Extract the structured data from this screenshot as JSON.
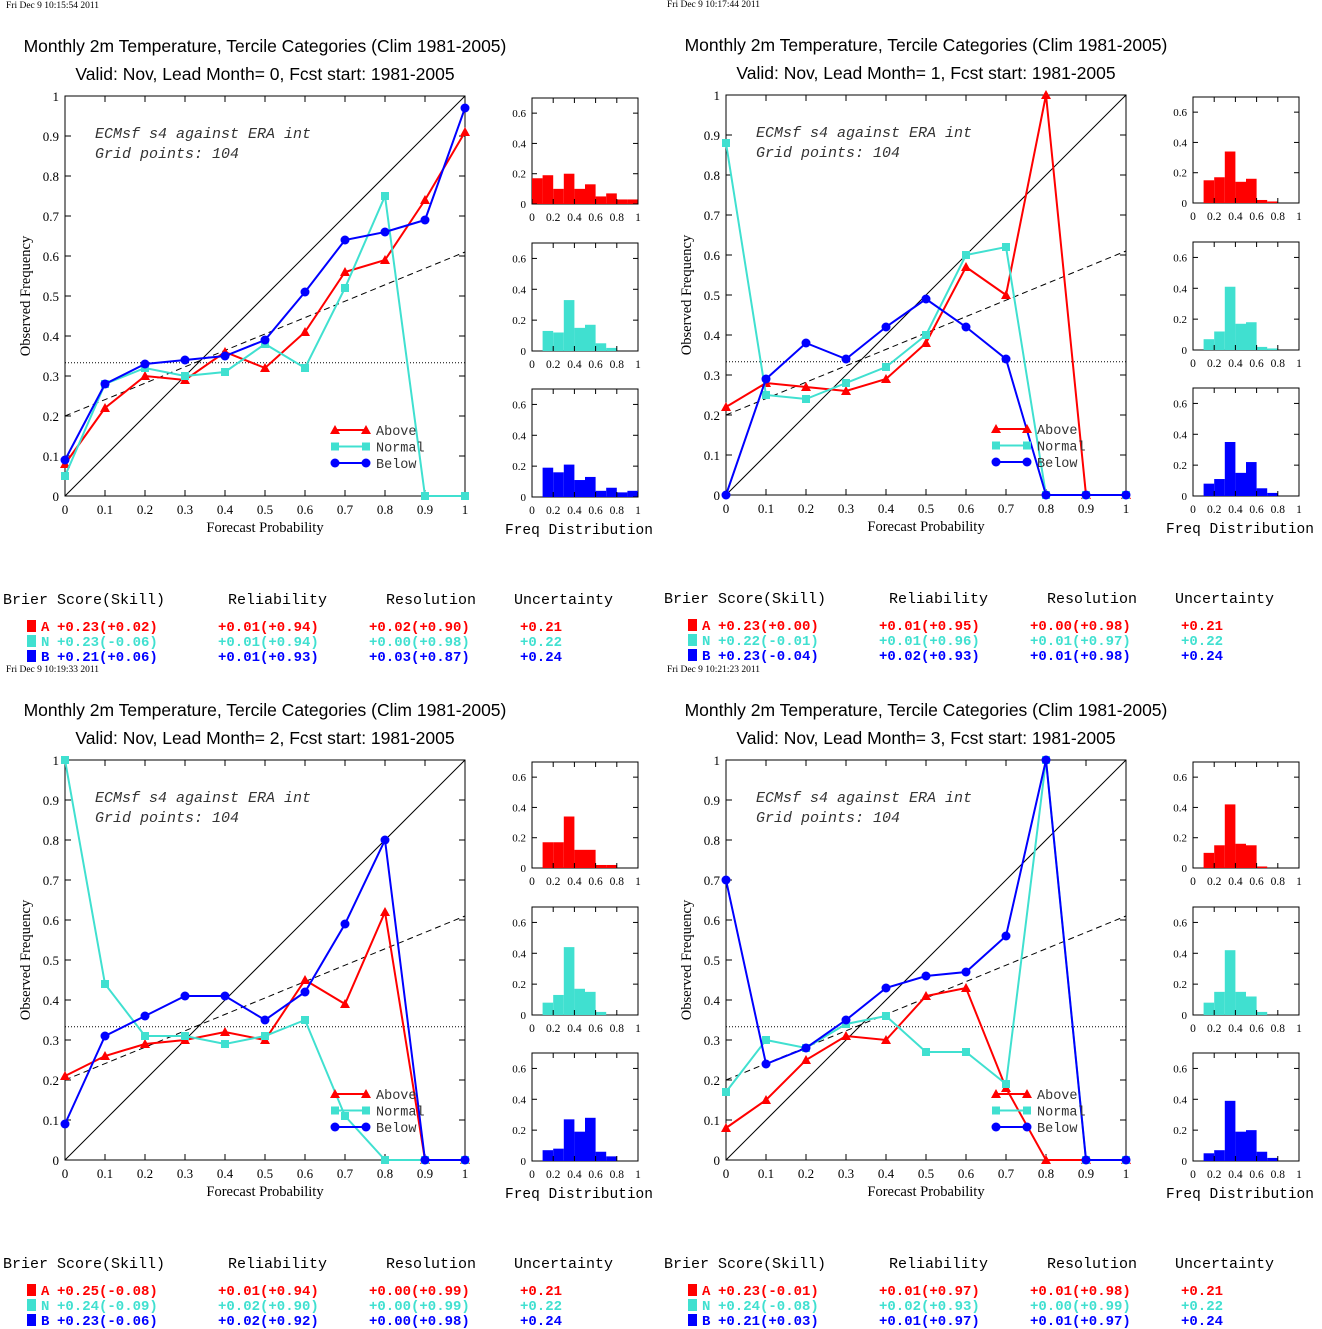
{
  "colors": {
    "above": "#ff0000",
    "normal": "#40e0d0",
    "below": "#0000ff",
    "axis": "#000000"
  },
  "common": {
    "title": "Monthly 2m Temperature, Tercile Categories (Clim 1981-2005)",
    "xlabel": "Forecast Probability",
    "ylabel": "Observed Frequency",
    "annotation_line1": "ECMsf s4 against ERA int",
    "annotation_line2": "Grid points:  104",
    "freq_label": "Freq Distribution",
    "legend": [
      "Above",
      "Normal",
      "Below"
    ],
    "score_headers": [
      "Brier Score(Skill)",
      "Reliability",
      "Resolution",
      "Uncertainty"
    ],
    "x_ticks": [
      "0",
      "0.1",
      "0.2",
      "0.3",
      "0.4",
      "0.5",
      "0.6",
      "0.7",
      "0.8",
      "0.9",
      "1"
    ],
    "y_ticks": [
      "0",
      "0.1",
      "0.2",
      "0.3",
      "0.4",
      "0.5",
      "0.6",
      "0.7",
      "0.8",
      "0.9",
      "1"
    ],
    "hist_x_ticks": [
      "0",
      "0.2",
      "0.4",
      "0.6",
      "0.8",
      "1"
    ],
    "hist_y_ticks": [
      "0",
      "0.2",
      "0.4",
      "0.6"
    ]
  },
  "chart_data": [
    {
      "type": "line",
      "timestamp": "Fri Dec  9 10:15:54 2011",
      "subtitle": "Valid: Nov, Lead Month= 0, Fcst start: 1981-2005",
      "xlim": [
        0,
        1
      ],
      "ylim": [
        0,
        1
      ],
      "x": [
        0,
        0.1,
        0.2,
        0.3,
        0.4,
        0.5,
        0.6,
        0.7,
        0.8,
        0.9,
        1
      ],
      "series": [
        {
          "name": "Above",
          "values": [
            0.08,
            0.22,
            0.3,
            0.29,
            0.36,
            0.32,
            0.41,
            0.56,
            0.59,
            0.74,
            0.91
          ]
        },
        {
          "name": "Normal",
          "values": [
            0.05,
            0.28,
            0.32,
            0.3,
            0.31,
            0.38,
            0.32,
            0.52,
            0.75,
            0.0,
            0.0
          ]
        },
        {
          "name": "Below",
          "values": [
            0.09,
            0.28,
            0.33,
            0.34,
            0.35,
            0.39,
            0.51,
            0.64,
            0.66,
            0.69,
            0.97
          ]
        }
      ],
      "climatology": 0.333,
      "fit_line": [
        0.2,
        0.61
      ],
      "histograms": {
        "bins": [
          0.05,
          0.15,
          0.25,
          0.35,
          0.45,
          0.55,
          0.65,
          0.75,
          0.85,
          0.95
        ],
        "above": [
          0.17,
          0.19,
          0.1,
          0.2,
          0.1,
          0.13,
          0.05,
          0.07,
          0.03,
          0.03
        ],
        "normal": [
          0.0,
          0.13,
          0.12,
          0.33,
          0.15,
          0.17,
          0.05,
          0.02,
          0.0,
          0.0
        ],
        "below": [
          0.0,
          0.19,
          0.16,
          0.21,
          0.11,
          0.13,
          0.04,
          0.06,
          0.03,
          0.04
        ]
      },
      "scores": {
        "A": {
          "label": "A",
          "brier": "+0.23(+0.02)",
          "reliability": "+0.01(+0.94)",
          "resolution": "+0.02(+0.90)",
          "uncertainty": "+0.21"
        },
        "N": {
          "label": "N",
          "brier": "+0.23(-0.06)",
          "reliability": "+0.01(+0.94)",
          "resolution": "+0.00(+0.98)",
          "uncertainty": "+0.22"
        },
        "B": {
          "label": "B",
          "brier": "+0.21(+0.06)",
          "reliability": "+0.01(+0.93)",
          "resolution": "+0.03(+0.87)",
          "uncertainty": "+0.24"
        }
      }
    },
    {
      "type": "line",
      "timestamp": "Fri Dec  9 10:17:44 2011",
      "subtitle": "Valid: Nov, Lead Month= 1, Fcst start: 1981-2005",
      "xlim": [
        0,
        1
      ],
      "ylim": [
        0,
        1
      ],
      "x": [
        0,
        0.1,
        0.2,
        0.3,
        0.4,
        0.5,
        0.6,
        0.7,
        0.8,
        0.9,
        1
      ],
      "series": [
        {
          "name": "Above",
          "values": [
            0.22,
            0.28,
            0.27,
            0.26,
            0.29,
            0.38,
            0.57,
            0.5,
            1.0,
            0.0,
            0.0
          ]
        },
        {
          "name": "Normal",
          "values": [
            0.88,
            0.25,
            0.24,
            0.28,
            0.32,
            0.4,
            0.6,
            0.62,
            0.0,
            0.0,
            0.0
          ]
        },
        {
          "name": "Below",
          "values": [
            0.0,
            0.29,
            0.38,
            0.34,
            0.42,
            0.49,
            0.42,
            0.34,
            0.0,
            0.0,
            0.0
          ]
        }
      ],
      "climatology": 0.333,
      "fit_line": [
        0.2,
        0.61
      ],
      "histograms": {
        "bins": [
          0.05,
          0.15,
          0.25,
          0.35,
          0.45,
          0.55,
          0.65,
          0.75,
          0.85,
          0.95
        ],
        "above": [
          0.0,
          0.15,
          0.17,
          0.34,
          0.14,
          0.16,
          0.02,
          0.01,
          0.0,
          0.0
        ],
        "normal": [
          0.0,
          0.07,
          0.12,
          0.41,
          0.17,
          0.18,
          0.02,
          0.01,
          0.0,
          0.0
        ],
        "below": [
          0.0,
          0.08,
          0.11,
          0.35,
          0.15,
          0.22,
          0.05,
          0.02,
          0.0,
          0.0
        ]
      },
      "scores": {
        "A": {
          "label": "A",
          "brier": "+0.23(+0.00)",
          "reliability": "+0.01(+0.95)",
          "resolution": "+0.00(+0.98)",
          "uncertainty": "+0.21"
        },
        "N": {
          "label": "N",
          "brier": "+0.22(-0.01)",
          "reliability": "+0.01(+0.96)",
          "resolution": "+0.01(+0.97)",
          "uncertainty": "+0.22"
        },
        "B": {
          "label": "B",
          "brier": "+0.23(-0.04)",
          "reliability": "+0.02(+0.93)",
          "resolution": "+0.01(+0.98)",
          "uncertainty": "+0.24"
        }
      }
    },
    {
      "type": "line",
      "timestamp": "Fri Dec  9 10:19:33 2011",
      "subtitle": "Valid: Nov, Lead Month= 2, Fcst start: 1981-2005",
      "xlim": [
        0,
        1
      ],
      "ylim": [
        0,
        1
      ],
      "x": [
        0,
        0.1,
        0.2,
        0.3,
        0.4,
        0.5,
        0.6,
        0.7,
        0.8,
        0.9,
        1
      ],
      "series": [
        {
          "name": "Above",
          "values": [
            0.21,
            0.26,
            0.29,
            0.3,
            0.32,
            0.3,
            0.45,
            0.39,
            0.62,
            0.0,
            0.0
          ]
        },
        {
          "name": "Normal",
          "values": [
            1.0,
            0.44,
            0.31,
            0.31,
            0.29,
            0.31,
            0.35,
            0.11,
            0.0,
            0.0,
            0.0
          ]
        },
        {
          "name": "Below",
          "values": [
            0.09,
            0.31,
            0.36,
            0.41,
            0.41,
            0.35,
            0.42,
            0.59,
            0.8,
            0.0,
            0.0
          ]
        }
      ],
      "climatology": 0.333,
      "fit_line": [
        0.2,
        0.61
      ],
      "histograms": {
        "bins": [
          0.05,
          0.15,
          0.25,
          0.35,
          0.45,
          0.55,
          0.65,
          0.75,
          0.85,
          0.95
        ],
        "above": [
          0.0,
          0.17,
          0.17,
          0.34,
          0.12,
          0.12,
          0.02,
          0.02,
          0.0,
          0.0
        ],
        "normal": [
          0.0,
          0.08,
          0.13,
          0.44,
          0.17,
          0.15,
          0.02,
          0.0,
          0.0,
          0.0
        ],
        "below": [
          0.0,
          0.07,
          0.08,
          0.27,
          0.19,
          0.28,
          0.06,
          0.03,
          0.0,
          0.0
        ]
      },
      "scores": {
        "A": {
          "label": "A",
          "brier": "+0.25(-0.08)",
          "reliability": "+0.01(+0.94)",
          "resolution": "+0.00(+0.99)",
          "uncertainty": "+0.21"
        },
        "N": {
          "label": "N",
          "brier": "+0.24(-0.09)",
          "reliability": "+0.02(+0.90)",
          "resolution": "+0.00(+0.99)",
          "uncertainty": "+0.22"
        },
        "B": {
          "label": "B",
          "brier": "+0.23(-0.06)",
          "reliability": "+0.02(+0.92)",
          "resolution": "+0.00(+0.98)",
          "uncertainty": "+0.24"
        }
      }
    },
    {
      "type": "line",
      "timestamp": "Fri Dec  9 10:21:23 2011",
      "subtitle": "Valid: Nov, Lead Month= 3, Fcst start: 1981-2005",
      "xlim": [
        0,
        1
      ],
      "ylim": [
        0,
        1
      ],
      "x": [
        0,
        0.1,
        0.2,
        0.3,
        0.4,
        0.5,
        0.6,
        0.7,
        0.8,
        0.9,
        1
      ],
      "series": [
        {
          "name": "Above",
          "values": [
            0.08,
            0.15,
            0.25,
            0.31,
            0.3,
            0.41,
            0.43,
            0.18,
            0.0,
            0.0,
            0.0
          ]
        },
        {
          "name": "Normal",
          "values": [
            0.17,
            0.3,
            0.28,
            0.34,
            0.36,
            0.27,
            0.27,
            0.19,
            1.0,
            0.0,
            0.0
          ]
        },
        {
          "name": "Below",
          "values": [
            0.7,
            0.24,
            0.28,
            0.35,
            0.43,
            0.46,
            0.47,
            0.56,
            1.0,
            0.0,
            0.0
          ]
        }
      ],
      "climatology": 0.333,
      "fit_line": [
        0.2,
        0.61
      ],
      "histograms": {
        "bins": [
          0.05,
          0.15,
          0.25,
          0.35,
          0.45,
          0.55,
          0.65,
          0.75,
          0.85,
          0.95
        ],
        "above": [
          0.0,
          0.1,
          0.15,
          0.42,
          0.16,
          0.15,
          0.01,
          0.0,
          0.0,
          0.0
        ],
        "normal": [
          0.0,
          0.08,
          0.15,
          0.42,
          0.15,
          0.12,
          0.02,
          0.0,
          0.0,
          0.0
        ],
        "below": [
          0.0,
          0.05,
          0.07,
          0.39,
          0.19,
          0.2,
          0.06,
          0.02,
          0.0,
          0.0
        ]
      },
      "scores": {
        "A": {
          "label": "A",
          "brier": "+0.23(-0.01)",
          "reliability": "+0.01(+0.97)",
          "resolution": "+0.01(+0.98)",
          "uncertainty": "+0.21"
        },
        "N": {
          "label": "N",
          "brier": "+0.24(-0.08)",
          "reliability": "+0.02(+0.93)",
          "resolution": "+0.00(+0.99)",
          "uncertainty": "+0.22"
        },
        "B": {
          "label": "B",
          "brier": "+0.21(+0.03)",
          "reliability": "+0.01(+0.97)",
          "resolution": "+0.01(+0.97)",
          "uncertainty": "+0.24"
        }
      }
    }
  ]
}
